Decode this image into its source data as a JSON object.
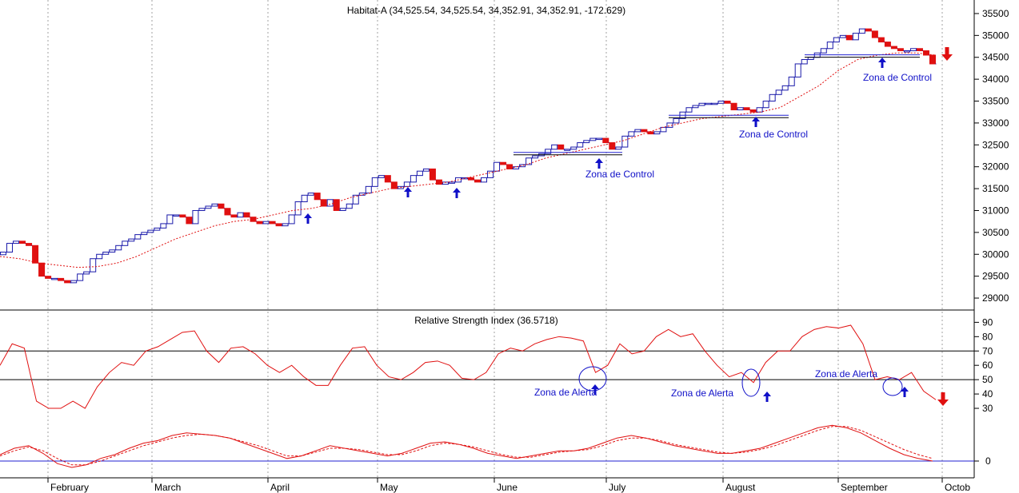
{
  "chart_data": [
    {
      "type": "candlestick",
      "title": "Habitat-A (34,525.54, 34,525.54, 34,352.91, 34,352.91, -172.629)",
      "y_ticks": [
        29000,
        29500,
        30000,
        30500,
        31000,
        31500,
        32000,
        32500,
        33000,
        33500,
        34000,
        34500,
        35000,
        35500
      ],
      "ylim": [
        28800,
        35700
      ],
      "x_labels": [
        "February",
        "March",
        "April",
        "May",
        "June",
        "July",
        "August",
        "September",
        "Octob"
      ],
      "close": [
        30050,
        30250,
        30300,
        30250,
        30200,
        29800,
        29500,
        29450,
        29450,
        29400,
        29350,
        29400,
        29550,
        29600,
        29900,
        30000,
        30050,
        30100,
        30200,
        30300,
        30350,
        30450,
        30500,
        30550,
        30600,
        30700,
        30900,
        30900,
        30850,
        30700,
        31000,
        31050,
        31100,
        31150,
        31050,
        30900,
        30850,
        30950,
        30850,
        30750,
        30700,
        30750,
        30700,
        30650,
        30700,
        30900,
        31200,
        31350,
        31400,
        31250,
        31100,
        31250,
        31000,
        31050,
        31150,
        31350,
        31400,
        31550,
        31750,
        31800,
        31650,
        31500,
        31550,
        31650,
        31800,
        31900,
        31950,
        31700,
        31600,
        31650,
        31650,
        31750,
        31750,
        31700,
        31650,
        31750,
        31900,
        32100,
        32050,
        31950,
        32000,
        32050,
        32200,
        32250,
        32300,
        32400,
        32500,
        32400,
        32400,
        32450,
        32550,
        32600,
        32650,
        32650,
        32550,
        32400,
        32450,
        32700,
        32800,
        32850,
        32800,
        32750,
        32800,
        32900,
        33000,
        33100,
        33250,
        33350,
        33400,
        33450,
        33450,
        33450,
        33500,
        33450,
        33300,
        33350,
        33300,
        33250,
        33350,
        33500,
        33650,
        33750,
        33850,
        34050,
        34350,
        34450,
        34500,
        34600,
        34700,
        34850,
        34950,
        35000,
        34900,
        35050,
        35150,
        35100,
        34950,
        34850,
        34750,
        34700,
        34650,
        34650,
        34700,
        34650,
        34550,
        34350
      ],
      "moving_average": [
        29950,
        29900,
        29800,
        29750,
        29700,
        29720,
        29800,
        29950,
        30150,
        30350,
        30500,
        30650,
        30750,
        30800,
        30900,
        31000,
        31050,
        31150,
        31300,
        31400,
        31500,
        31550,
        31600,
        31650,
        31750,
        31850,
        31950,
        32050,
        32200,
        32300,
        32400,
        32500,
        32600,
        32750,
        32900,
        33000,
        33100,
        33150,
        33200,
        33250,
        33350,
        33600,
        33850,
        34200,
        34450,
        34550,
        34600,
        34600,
        34550
      ],
      "annotations": [
        {
          "text": "Zona de Control",
          "panel": "price"
        },
        {
          "text": "Zona de Control",
          "panel": "price"
        },
        {
          "text": "Zona de Control",
          "panel": "price"
        }
      ]
    },
    {
      "type": "line",
      "title": "Relative Strength Index (36.5718)",
      "y_ticks": [
        30,
        40,
        50,
        60,
        70,
        80,
        90
      ],
      "ylim": [
        25,
        93
      ],
      "reference_lines": [
        50,
        70
      ],
      "values": [
        60,
        75,
        72,
        35,
        30,
        30,
        35,
        30,
        45,
        55,
        62,
        60,
        70,
        73,
        78,
        83,
        84,
        70,
        62,
        72,
        73,
        68,
        60,
        55,
        60,
        52,
        46,
        46,
        60,
        72,
        73,
        60,
        52,
        50,
        55,
        62,
        63,
        60,
        51,
        50,
        55,
        68,
        72,
        70,
        75,
        78,
        80,
        79,
        77,
        55,
        60,
        75,
        68,
        70,
        80,
        85,
        80,
        82,
        70,
        60,
        52,
        55,
        48,
        62,
        70,
        70,
        80,
        85,
        87,
        86,
        88,
        75,
        50,
        52,
        50,
        55,
        42,
        36
      ],
      "annotations": [
        {
          "text": "Zona de Alerta",
          "panel": "rsi"
        },
        {
          "text": "Zona de Alerta",
          "panel": "rsi"
        },
        {
          "text": "Zona de Alerta",
          "panel": "rsi"
        }
      ]
    },
    {
      "type": "line",
      "y_ticks": [
        0
      ],
      "values": [
        5,
        10,
        12,
        6,
        -2,
        -5,
        -3,
        2,
        5,
        10,
        14,
        16,
        20,
        22,
        21,
        20,
        18,
        14,
        10,
        6,
        2,
        4,
        8,
        12,
        10,
        8,
        6,
        4,
        6,
        10,
        14,
        15,
        13,
        10,
        6,
        4,
        2,
        4,
        6,
        8,
        8,
        10,
        14,
        18,
        20,
        18,
        15,
        12,
        10,
        8,
        6,
        6,
        8,
        10,
        14,
        18,
        22,
        26,
        28,
        26,
        22,
        16,
        10,
        5,
        2,
        0
      ],
      "signal": [
        4,
        8,
        11,
        8,
        2,
        -3,
        -3,
        0,
        4,
        8,
        12,
        15,
        18,
        20,
        21,
        20,
        18,
        15,
        12,
        8,
        4,
        4,
        7,
        10,
        10,
        9,
        7,
        5,
        5,
        8,
        12,
        14,
        13,
        11,
        8,
        5,
        3,
        3,
        5,
        7,
        8,
        9,
        12,
        16,
        18,
        18,
        16,
        13,
        11,
        9,
        7,
        6,
        7,
        9,
        12,
        16,
        20,
        24,
        27,
        27,
        24,
        19,
        14,
        9,
        5,
        2
      ]
    }
  ],
  "colors": {
    "candle_up": "#1a1aaa",
    "candle_down": "#e01010",
    "moving_average": "#e01010",
    "rsi_line": "#e01010",
    "reference_line": "#000000",
    "blue_line": "#2020d0",
    "annotation": "#1010c8",
    "arrow_up": "#1010c8",
    "arrow_down": "#e01010",
    "grid": "#a0a0a0"
  }
}
